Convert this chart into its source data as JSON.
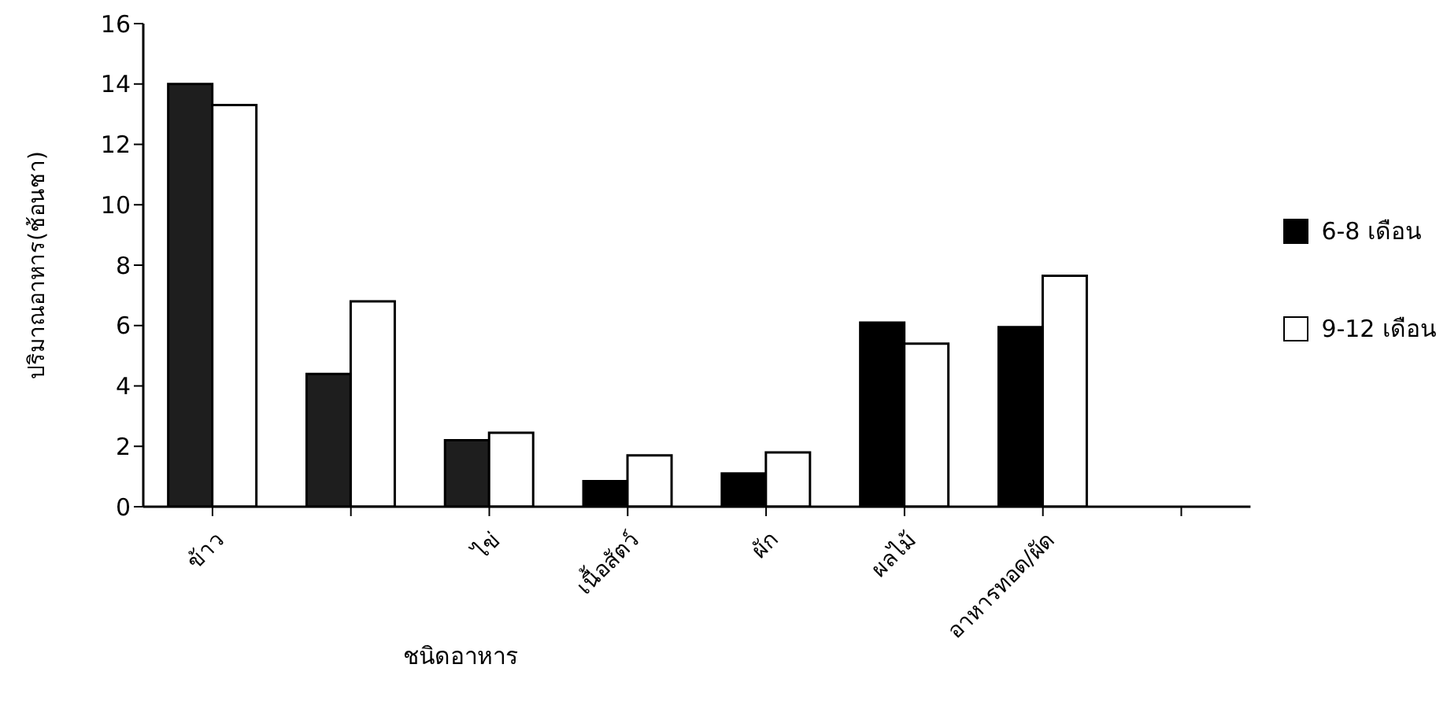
{
  "chart_data": {
    "type": "bar",
    "xlabel": "ชนิดอาหาร",
    "ylabel": "ปริมาณอาหาร(ช้อนชา)",
    "categories": [
      "ข้าว",
      null,
      "ไข่",
      "เนื้อสัตว์",
      "ผัก",
      "ผลไม้",
      "อาหารทอด/ผัด",
      null
    ],
    "series": [
      {
        "name": "6-8 เดือน",
        "color": "#000000",
        "colors": [
          "#1e1e1e",
          "#1e1e1e",
          "#1e1e1e",
          "#000000",
          "#000000",
          "#000000",
          "#000000",
          null
        ],
        "values": [
          14.0,
          4.4,
          2.2,
          0.85,
          1.1,
          6.1,
          5.95,
          null
        ]
      },
      {
        "name": "9-12 เดือน",
        "color": "#ffffff",
        "values": [
          13.3,
          6.8,
          2.45,
          1.7,
          1.8,
          5.4,
          7.65,
          null
        ]
      }
    ],
    "ylim": [
      0,
      16
    ],
    "yticks": [
      0,
      2,
      4,
      6,
      8,
      10,
      12,
      14,
      16
    ],
    "grid": false,
    "legend": "right"
  }
}
